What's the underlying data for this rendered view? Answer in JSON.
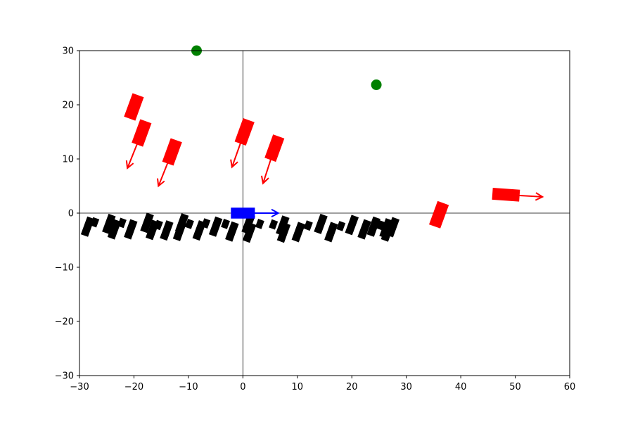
{
  "chart_data": {
    "type": "scatter",
    "title": "",
    "xlabel": "",
    "ylabel": "",
    "xlim": [
      -30,
      60
    ],
    "ylim": [
      -30,
      30
    ],
    "grid": false,
    "legend": "none",
    "x_ticks": [
      -30,
      -20,
      -10,
      0,
      10,
      20,
      30,
      40,
      50,
      60
    ],
    "y_ticks": [
      -30,
      -20,
      -10,
      0,
      10,
      20,
      30
    ],
    "x_tick_labels": [
      "−30",
      "−20",
      "−10",
      "0",
      "10",
      "20",
      "30",
      "40",
      "50",
      "60"
    ],
    "y_tick_labels": [
      "−30",
      "−20",
      "−10",
      "0",
      "10",
      "20",
      "30"
    ],
    "zero_lines": true,
    "colors": {
      "ego": "#0000ff",
      "obstacle": "#ff0000",
      "parked": "#000000",
      "goal": "#008000"
    },
    "ego": {
      "x": 0,
      "y": 0,
      "length": 4.4,
      "width": 2,
      "heading_deg": 0,
      "arrow": [
        6.5,
        0
      ]
    },
    "goals": [
      {
        "x": -8.5,
        "y": 30
      },
      {
        "x": 24.5,
        "y": 23.7
      }
    ],
    "moving_obstacles": [
      {
        "x": -20,
        "y": 19.6,
        "length": 4.6,
        "width": 2.2,
        "heading_deg": 70,
        "arrow": null
      },
      {
        "x": -18.6,
        "y": 14.8,
        "length": 4.6,
        "width": 2.2,
        "heading_deg": 70,
        "arrow": [
          -21.2,
          8.3
        ]
      },
      {
        "x": -13,
        "y": 11.3,
        "length": 4.6,
        "width": 2.2,
        "heading_deg": 70,
        "arrow": [
          -15.5,
          5
        ]
      },
      {
        "x": 0.3,
        "y": 15,
        "length": 4.6,
        "width": 2.2,
        "heading_deg": 70,
        "arrow": [
          -2,
          8.5
        ]
      },
      {
        "x": 5.8,
        "y": 12,
        "length": 4.6,
        "width": 2.2,
        "heading_deg": 70,
        "arrow": [
          3.7,
          5.5
        ]
      },
      {
        "x": 36,
        "y": -0.3,
        "length": 4.6,
        "width": 2.2,
        "heading_deg": 70,
        "arrow": null
      },
      {
        "x": 48.3,
        "y": 3.4,
        "length": 5,
        "width": 2.2,
        "heading_deg": -4,
        "arrow": [
          55,
          3
        ]
      }
    ],
    "parked_cars": [
      {
        "x": -28.5,
        "y": -2.5,
        "length": 3.5,
        "width": 1.4,
        "heading_deg": 70
      },
      {
        "x": -27.2,
        "y": -1.7,
        "length": 1.6,
        "width": 1.2,
        "heading_deg": 70
      },
      {
        "x": -24.6,
        "y": -2,
        "length": 3.5,
        "width": 1.4,
        "heading_deg": 70
      },
      {
        "x": -23.6,
        "y": -3,
        "length": 3.5,
        "width": 1.4,
        "heading_deg": 70
      },
      {
        "x": -22.2,
        "y": -1.8,
        "length": 1.6,
        "width": 1.2,
        "heading_deg": 70
      },
      {
        "x": -20.6,
        "y": -3,
        "length": 3.5,
        "width": 1.4,
        "heading_deg": 70
      },
      {
        "x": -17.6,
        "y": -1.8,
        "length": 3.5,
        "width": 1.4,
        "heading_deg": 70
      },
      {
        "x": -16.6,
        "y": -3.1,
        "length": 3.5,
        "width": 1.4,
        "heading_deg": 70
      },
      {
        "x": -15.5,
        "y": -2.2,
        "length": 1.6,
        "width": 1.2,
        "heading_deg": 70
      },
      {
        "x": -14,
        "y": -3.2,
        "length": 3.5,
        "width": 1.4,
        "heading_deg": 70
      },
      {
        "x": -11.2,
        "y": -1.9,
        "length": 3.5,
        "width": 1.4,
        "heading_deg": 70
      },
      {
        "x": -11.6,
        "y": -3.3,
        "length": 3.5,
        "width": 1.4,
        "heading_deg": 70
      },
      {
        "x": -9.8,
        "y": -2,
        "length": 1.6,
        "width": 1.2,
        "heading_deg": 70
      },
      {
        "x": -8,
        "y": -3.2,
        "length": 3.5,
        "width": 1.4,
        "heading_deg": 70
      },
      {
        "x": -6.8,
        "y": -1.9,
        "length": 1.6,
        "width": 1.2,
        "heading_deg": 70
      },
      {
        "x": -5,
        "y": -2.5,
        "length": 3.5,
        "width": 1.4,
        "heading_deg": 70
      },
      {
        "x": -3.2,
        "y": -2,
        "length": 1.6,
        "width": 1.2,
        "heading_deg": 70
      },
      {
        "x": -2,
        "y": -3.4,
        "length": 3.5,
        "width": 1.4,
        "heading_deg": 70
      },
      {
        "x": 1,
        "y": -2,
        "length": 3.5,
        "width": 1.4,
        "heading_deg": 70
      },
      {
        "x": 1.2,
        "y": -3.6,
        "length": 3.5,
        "width": 1.4,
        "heading_deg": 70
      },
      {
        "x": 3.1,
        "y": -2,
        "length": 1.6,
        "width": 1.2,
        "heading_deg": 70
      },
      {
        "x": 5.6,
        "y": -2.1,
        "length": 1.6,
        "width": 1.2,
        "heading_deg": 70
      },
      {
        "x": 7.3,
        "y": -2.3,
        "length": 3.5,
        "width": 1.4,
        "heading_deg": 70
      },
      {
        "x": 7.5,
        "y": -3.6,
        "length": 3.5,
        "width": 1.4,
        "heading_deg": 70
      },
      {
        "x": 10.2,
        "y": -3.5,
        "length": 3.5,
        "width": 1.4,
        "heading_deg": 70
      },
      {
        "x": 12,
        "y": -2.3,
        "length": 1.6,
        "width": 1.2,
        "heading_deg": 70
      },
      {
        "x": 14.3,
        "y": -2,
        "length": 3.5,
        "width": 1.4,
        "heading_deg": 70
      },
      {
        "x": 16.2,
        "y": -3.5,
        "length": 3.5,
        "width": 1.4,
        "heading_deg": 70
      },
      {
        "x": 18,
        "y": -2.4,
        "length": 1.6,
        "width": 1.2,
        "heading_deg": 70
      },
      {
        "x": 20,
        "y": -2.2,
        "length": 3.5,
        "width": 1.4,
        "heading_deg": 70
      },
      {
        "x": 22.3,
        "y": -3,
        "length": 3.5,
        "width": 1.4,
        "heading_deg": 70
      },
      {
        "x": 24,
        "y": -2.5,
        "length": 3.5,
        "width": 1.4,
        "heading_deg": 70
      },
      {
        "x": 25.2,
        "y": -2.2,
        "length": 1.6,
        "width": 1.2,
        "heading_deg": 70
      },
      {
        "x": 26.3,
        "y": -2.8,
        "length": 3.5,
        "width": 1.4,
        "heading_deg": 70
      },
      {
        "x": 26.6,
        "y": -3.4,
        "length": 3.5,
        "width": 1.4,
        "heading_deg": 70
      },
      {
        "x": 27.5,
        "y": -2.6,
        "length": 3.5,
        "width": 1.4,
        "heading_deg": 70
      }
    ]
  }
}
